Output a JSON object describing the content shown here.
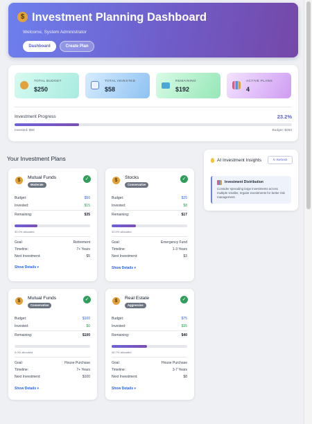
{
  "header": {
    "title": "Investment Planning Dashboard",
    "welcome": "Welcome, System Administrator",
    "dashboard_label": "Dashboard",
    "create_label": "Create Plan"
  },
  "stats": [
    {
      "label": "TOTAL BUDGET",
      "value": "$250",
      "icon": "money-bag-icon"
    },
    {
      "label": "TOTAL INVESTED",
      "value": "$58",
      "icon": "chart-icon"
    },
    {
      "label": "REMAINING",
      "value": "$192",
      "icon": "credit-card-icon"
    },
    {
      "label": "ACTIVE PLANS",
      "value": "4",
      "icon": "bar-chart-icon"
    }
  ],
  "progress": {
    "label": "Investment Progress",
    "percent_text": "23.2%",
    "fraction": 0.232,
    "invested_text": "Invested: $58",
    "budget_text": "Budget: $250"
  },
  "plans_title": "Your Investment Plans",
  "labels": {
    "budget": "Budget:",
    "invested": "Invested:",
    "remaining": "Remaining:",
    "goal": "Goal:",
    "timeline": "Timeline:",
    "next": "Next Investment:",
    "show": "Show Details"
  },
  "plans": [
    {
      "name": "Mutual Funds",
      "badge": "Moderate",
      "budget": "$50",
      "invested": "$15",
      "remaining": "$35",
      "fraction": 0.3,
      "allocated": "30.0% allocated",
      "goal": "Retirement",
      "timeline": "7+ Years",
      "next": "$5"
    },
    {
      "name": "Stocks",
      "badge": "Conservative",
      "budget": "$25",
      "invested": "$8",
      "remaining": "$17",
      "fraction": 0.32,
      "allocated": "32.0% allocated",
      "goal": "Emergency Fund",
      "timeline": "1-3 Years",
      "next": "$3"
    },
    {
      "name": "Mutual Funds",
      "badge": "Conservative",
      "budget": "$100",
      "invested": "$0",
      "remaining": "$100",
      "fraction": 0.0,
      "allocated": "0.0% allocated",
      "goal": "House Purchase",
      "timeline": "7+ Years",
      "next": "$100"
    },
    {
      "name": "Real Estate",
      "badge": "Aggressive",
      "budget": "$75",
      "invested": "$35",
      "remaining": "$40",
      "fraction": 0.467,
      "allocated": "46.7% allocated",
      "goal": "House Purchase",
      "timeline": "3-7 Years",
      "next": "$8"
    }
  ],
  "insights": {
    "title": "AI Investment Insights",
    "refresh_label": "↻ Refresh",
    "box_title": "Investment Distribution",
    "box_text": "Consider spreading large investments across multiple smaller, regular investments for better risk management."
  }
}
